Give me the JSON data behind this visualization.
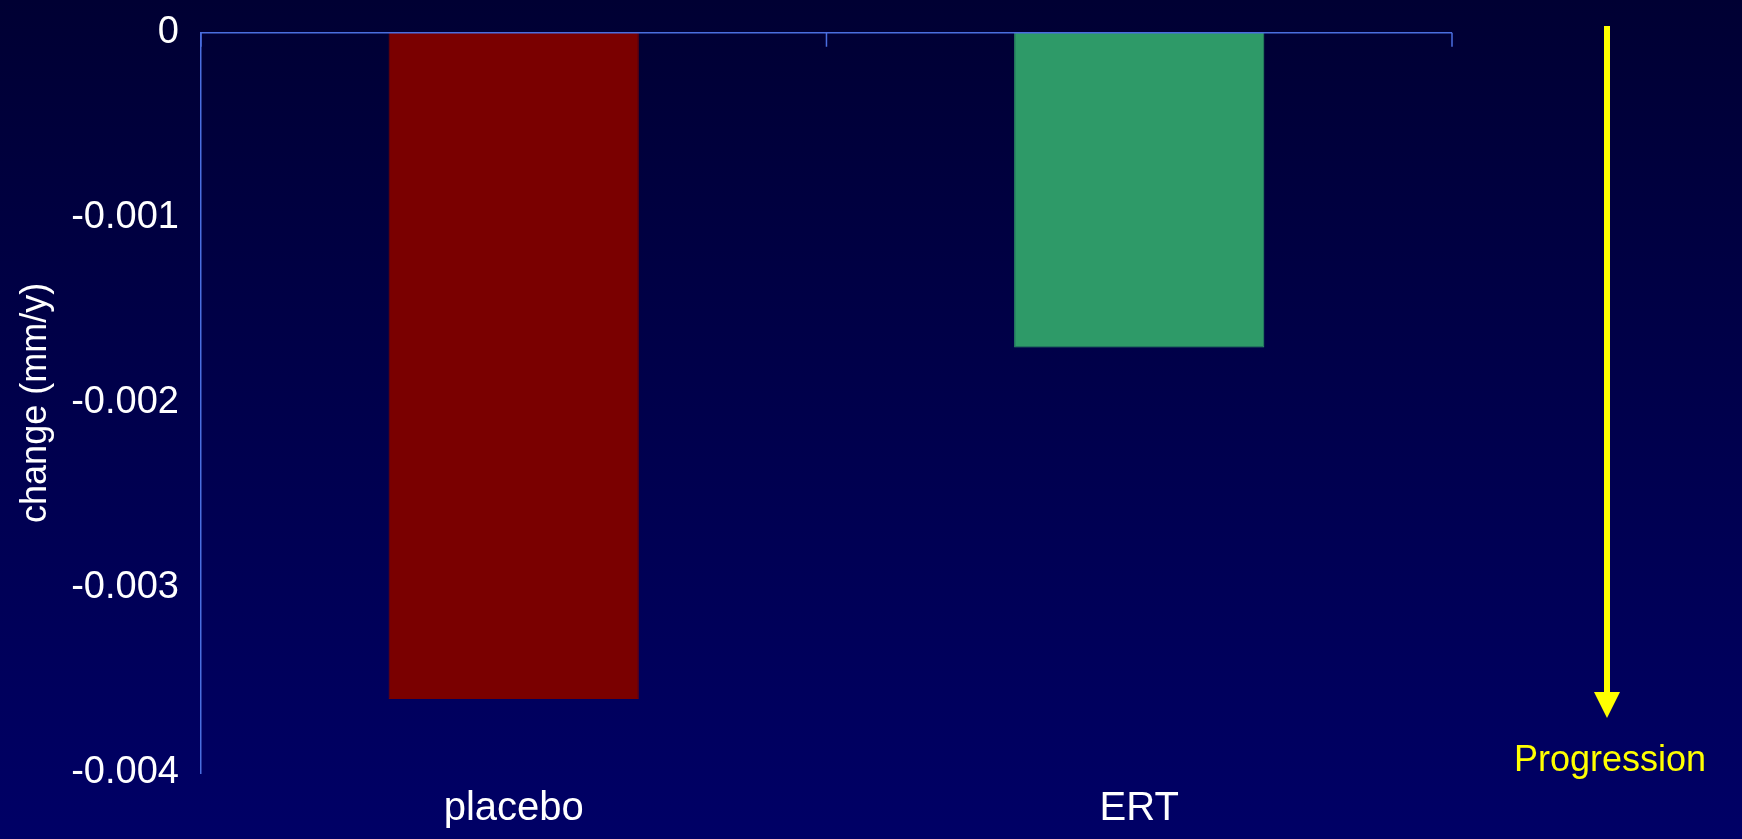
{
  "chart_data": {
    "type": "bar",
    "categories": [
      "placebo",
      "ERT"
    ],
    "values": [
      -0.0036,
      -0.0017
    ],
    "colors": [
      "#7a0000",
      "#2e9a68"
    ],
    "ylabel": "change (mm/y)",
    "ylim": [
      -0.004,
      0
    ],
    "yticks": [
      -0.004,
      -0.003,
      -0.002,
      -0.001,
      0
    ],
    "annotations": [
      "Progression"
    ],
    "legend": false
  }
}
